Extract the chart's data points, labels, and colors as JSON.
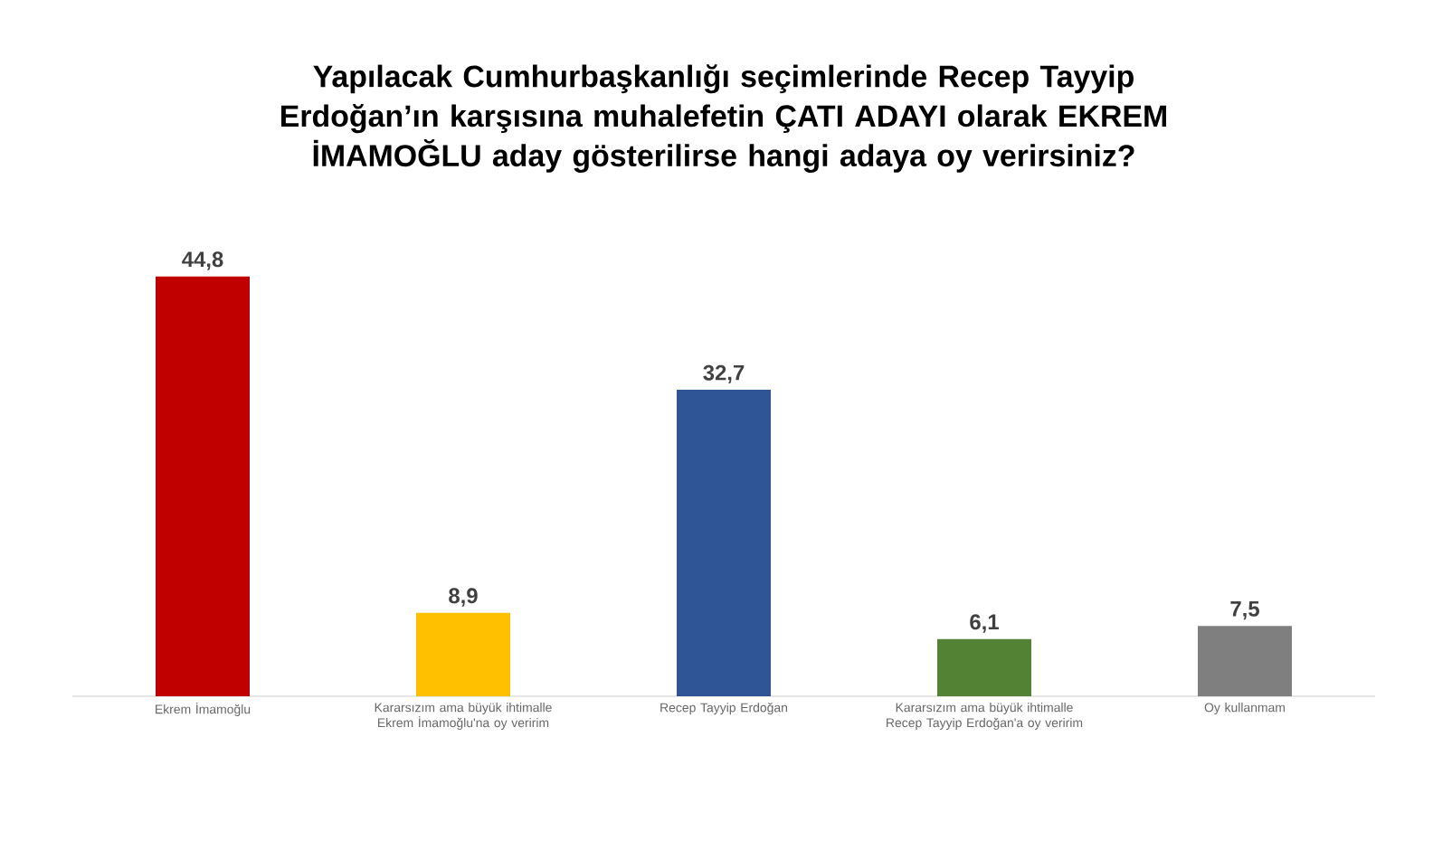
{
  "chart_data": {
    "type": "bar",
    "title": "Yapılacak Cumhurbaşkanlığı seçimlerinde Recep Tayyip Erdoğan’ın karşısına muhalefetin ÇATI ADAYI olarak EKREM İMAMOĞLU aday gösterilirse hangi adaya oy verirsiniz?",
    "categories": [
      "Ekrem İmamoğlu",
      "Kararsızım ama büyük ihtimalle Ekrem İmamoğlu'na oy veririm",
      "Recep Tayyip Erdoğan",
      "Kararsızım ama büyük ihtimalle Recep Tayyip Erdoğan'a oy veririm",
      "Oy kullanmam"
    ],
    "values": [
      44.8,
      8.9,
      32.7,
      6.1,
      7.5
    ],
    "value_labels": [
      "44,8",
      "8,9",
      "32,7",
      "6,1",
      "7,5"
    ],
    "colors": [
      "#c00000",
      "#ffc000",
      "#2f5597",
      "#548235",
      "#7f7f7f"
    ]
  }
}
